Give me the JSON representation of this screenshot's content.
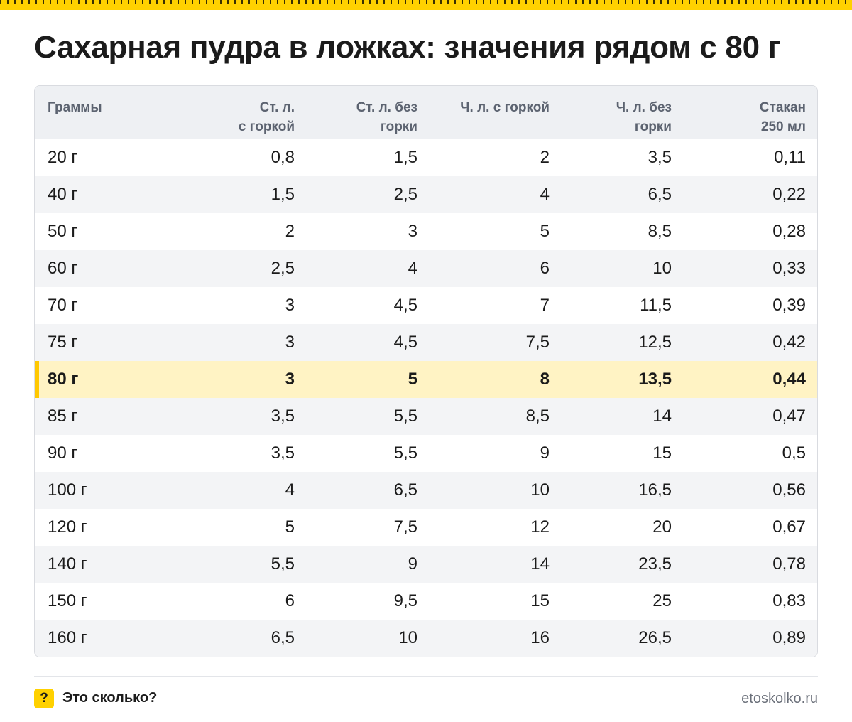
{
  "title": "Сахарная пудра в ложках: значения рядом с 80 г",
  "table": {
    "headers": [
      [
        "Граммы"
      ],
      [
        "Ст. л.",
        "с горкой"
      ],
      [
        "Ст. л. без",
        "горки"
      ],
      [
        "Ч. л. с горкой"
      ],
      [
        "Ч. л. без",
        "горки"
      ],
      [
        "Стакан",
        "250 мл"
      ]
    ],
    "highlight_row": "80 г",
    "rows": [
      [
        "20 г",
        "0,8",
        "1,5",
        "2",
        "3,5",
        "0,11"
      ],
      [
        "40 г",
        "1,5",
        "2,5",
        "4",
        "6,5",
        "0,22"
      ],
      [
        "50 г",
        "2",
        "3",
        "5",
        "8,5",
        "0,28"
      ],
      [
        "60 г",
        "2,5",
        "4",
        "6",
        "10",
        "0,33"
      ],
      [
        "70 г",
        "3",
        "4,5",
        "7",
        "11,5",
        "0,39"
      ],
      [
        "75 г",
        "3",
        "4,5",
        "7,5",
        "12,5",
        "0,42"
      ],
      [
        "80 г",
        "3",
        "5",
        "8",
        "13,5",
        "0,44"
      ],
      [
        "85 г",
        "3,5",
        "5,5",
        "8,5",
        "14",
        "0,47"
      ],
      [
        "90 г",
        "3,5",
        "5,5",
        "9",
        "15",
        "0,5"
      ],
      [
        "100 г",
        "4",
        "6,5",
        "10",
        "16,5",
        "0,56"
      ],
      [
        "120 г",
        "5",
        "7,5",
        "12",
        "20",
        "0,67"
      ],
      [
        "140 г",
        "5,5",
        "9",
        "14",
        "23,5",
        "0,78"
      ],
      [
        "150 г",
        "6",
        "9,5",
        "15",
        "25",
        "0,83"
      ],
      [
        "160 г",
        "6,5",
        "10",
        "16",
        "26,5",
        "0,89"
      ]
    ]
  },
  "footer": {
    "badge": "?",
    "brand": "Это сколько?",
    "site": "etoskolko.ru"
  },
  "colors": {
    "accent": "#ffd100",
    "highlight_bg": "#fff3c4",
    "header_bg": "#eef0f3"
  }
}
